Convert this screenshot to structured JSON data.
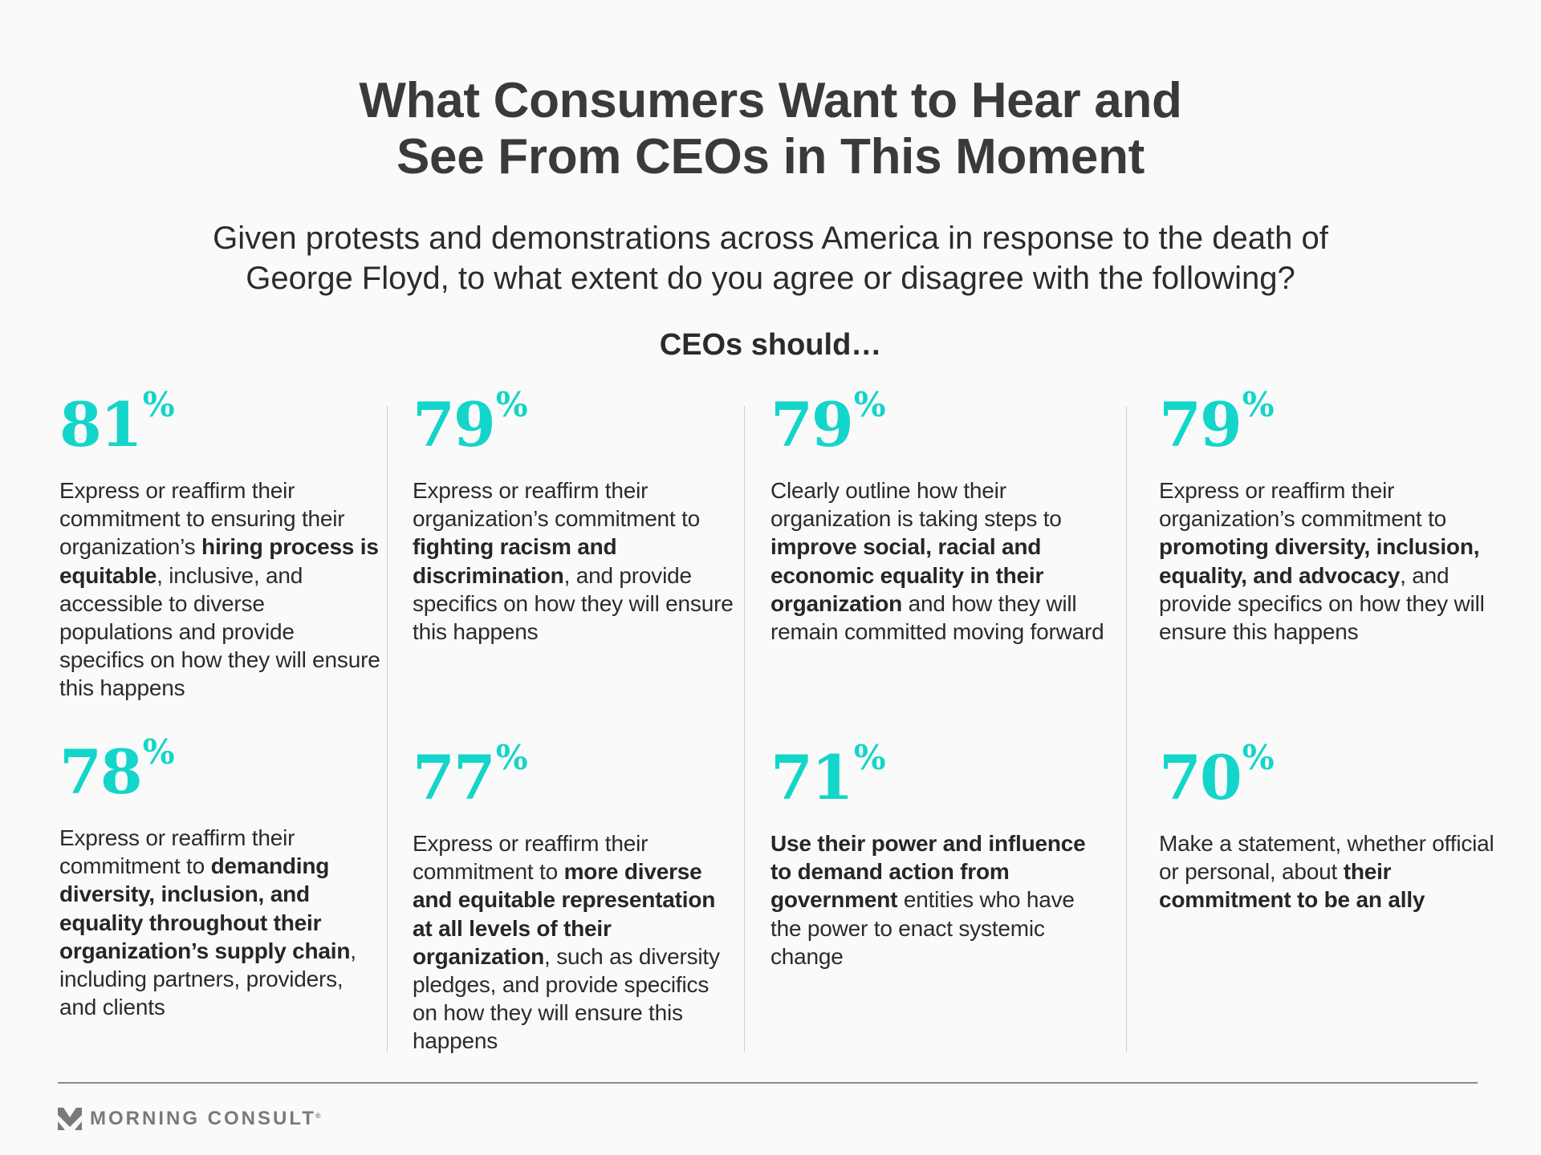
{
  "header": {
    "title_lines": [
      "What Consumers Want to Hear and",
      "See From CEOs in This Moment"
    ],
    "subtitle_lines": [
      "Given protests and demonstrations across America in response to the death of",
      "George Floyd, to what extent do you agree or disagree with the following?"
    ],
    "lead": "CEOs should…"
  },
  "accent_color": "#14d5c9",
  "cards": [
    {
      "value": "81",
      "unit": "%",
      "segments": [
        {
          "text": "Express or reaffirm their commitment to ensuring their organization’s ",
          "bold": false
        },
        {
          "text": "hiring process is equitable",
          "bold": true
        },
        {
          "text": ", inclusive, and accessible to diverse populations and provide specifics on how they will ensure this happens",
          "bold": false
        }
      ]
    },
    {
      "value": "79",
      "unit": "%",
      "segments": [
        {
          "text": "Express or reaffirm their organization’s commitment to ",
          "bold": false
        },
        {
          "text": "fighting racism and discrimination",
          "bold": true
        },
        {
          "text": ", and provide specifics on how they will ensure this happens",
          "bold": false
        }
      ]
    },
    {
      "value": "79",
      "unit": "%",
      "segments": [
        {
          "text": "Clearly outline how their organization is taking steps to ",
          "bold": false
        },
        {
          "text": "improve social, racial and economic equality in their organization",
          "bold": true
        },
        {
          "text": " and how they will remain committed moving forward",
          "bold": false
        }
      ]
    },
    {
      "value": "79",
      "unit": "%",
      "segments": [
        {
          "text": "Express or reaffirm their organization’s commitment to ",
          "bold": false
        },
        {
          "text": "promoting diversity, inclusion, equality, and advocacy",
          "bold": true
        },
        {
          "text": ", and provide specifics on how they will ensure this happens",
          "bold": false
        }
      ]
    },
    {
      "value": "78",
      "unit": "%",
      "segments": [
        {
          "text": "Express or reaffirm their commitment to ",
          "bold": false
        },
        {
          "text": "demanding diversity, inclusion, and equality throughout their organization’s supply chain",
          "bold": true
        },
        {
          "text": ", including partners, providers, and clients",
          "bold": false
        }
      ]
    },
    {
      "value": "77",
      "unit": "%",
      "segments": [
        {
          "text": "Express or reaffirm their commitment to ",
          "bold": false
        },
        {
          "text": "more diverse and equitable representation at all levels of their organization",
          "bold": true
        },
        {
          "text": ", such as diversity pledges, and provide specifics on how they will ensure this happens",
          "bold": false
        }
      ]
    },
    {
      "value": "71",
      "unit": "%",
      "segments": [
        {
          "text": "Use their power and influence to demand action from government",
          "bold": true
        },
        {
          "text": " entities who have the power to enact systemic change",
          "bold": false
        }
      ]
    },
    {
      "value": "70",
      "unit": "%",
      "segments": [
        {
          "text": "Make a statement, whether official or personal, about ",
          "bold": false
        },
        {
          "text": "their commitment to be an ally",
          "bold": true
        }
      ]
    }
  ],
  "footer": {
    "logo_text": "MORNING CONSULT",
    "logo_mark": "®",
    "logo_icon": "morning-consult-m-icon"
  }
}
